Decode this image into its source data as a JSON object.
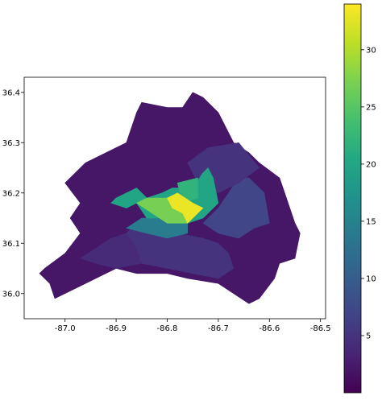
{
  "chart_data": {
    "type": "choropleth",
    "xlim": [
      -87.08,
      -86.49
    ],
    "ylim": [
      35.95,
      36.43
    ],
    "x_ticks": [
      -87.0,
      -86.9,
      -86.8,
      -86.7,
      -86.6,
      -86.5
    ],
    "x_tick_labels": [
      "-87.0",
      "-86.9",
      "-86.8",
      "-86.7",
      "-86.6",
      "-86.5"
    ],
    "y_ticks": [
      36.0,
      36.1,
      36.2,
      36.3,
      36.4
    ],
    "y_tick_labels": [
      "36.0",
      "36.1",
      "36.2",
      "36.3",
      "36.4"
    ],
    "colorbar": {
      "colormap": "viridis",
      "range": [
        0,
        34
      ],
      "ticks": [
        5,
        10,
        15,
        20,
        25,
        30
      ],
      "tick_labels": [
        "5",
        "10",
        "15",
        "20",
        "25",
        "30"
      ]
    },
    "regions": [
      {
        "value": 2,
        "lonlat": [
          [
            -87.04,
            36.05
          ],
          [
            -87.0,
            36.08
          ],
          [
            -86.97,
            36.12
          ],
          [
            -86.99,
            36.15
          ],
          [
            -86.97,
            36.18
          ],
          [
            -87.0,
            36.22
          ],
          [
            -86.96,
            36.26
          ],
          [
            -86.88,
            36.3
          ],
          [
            -86.86,
            36.36
          ],
          [
            -86.85,
            36.38
          ],
          [
            -86.8,
            36.37
          ],
          [
            -86.77,
            36.37
          ],
          [
            -86.75,
            36.4
          ],
          [
            -86.73,
            36.39
          ],
          [
            -86.7,
            36.36
          ],
          [
            -86.67,
            36.3
          ],
          [
            -86.64,
            36.28
          ],
          [
            -86.62,
            36.26
          ],
          [
            -86.58,
            36.23
          ],
          [
            -86.57,
            36.2
          ],
          [
            -86.55,
            36.14
          ],
          [
            -86.54,
            36.12
          ],
          [
            -86.55,
            36.07
          ],
          [
            -86.58,
            36.06
          ],
          [
            -86.59,
            36.03
          ],
          [
            -86.62,
            35.99
          ],
          [
            -86.64,
            35.98
          ],
          [
            -86.67,
            36.0
          ],
          [
            -86.7,
            36.02
          ],
          [
            -86.76,
            36.03
          ],
          [
            -86.8,
            36.04
          ],
          [
            -86.86,
            36.04
          ],
          [
            -86.9,
            36.05
          ],
          [
            -86.96,
            36.02
          ],
          [
            -87.02,
            35.99
          ],
          [
            -87.03,
            36.02
          ],
          [
            -87.05,
            36.04
          ]
        ]
      },
      {
        "value": 4,
        "lonlat": [
          [
            -86.97,
            36.07
          ],
          [
            -86.94,
            36.09
          ],
          [
            -86.91,
            36.11
          ],
          [
            -86.88,
            36.12
          ],
          [
            -86.86,
            36.09
          ],
          [
            -86.85,
            36.06
          ],
          [
            -86.9,
            36.05
          ],
          [
            -86.94,
            36.06
          ]
        ]
      },
      {
        "value": 5,
        "lonlat": [
          [
            -86.88,
            36.12
          ],
          [
            -86.85,
            36.15
          ],
          [
            -86.81,
            36.15
          ],
          [
            -86.78,
            36.12
          ],
          [
            -86.73,
            36.11
          ],
          [
            -86.7,
            36.1
          ],
          [
            -86.68,
            36.08
          ],
          [
            -86.67,
            36.05
          ],
          [
            -86.7,
            36.03
          ],
          [
            -86.75,
            36.04
          ],
          [
            -86.8,
            36.05
          ],
          [
            -86.85,
            36.06
          ],
          [
            -86.86,
            36.09
          ]
        ]
      },
      {
        "value": 7,
        "lonlat": [
          [
            -86.73,
            36.14
          ],
          [
            -86.7,
            36.12
          ],
          [
            -86.66,
            36.11
          ],
          [
            -86.63,
            36.13
          ],
          [
            -86.6,
            36.14
          ],
          [
            -86.61,
            36.2
          ],
          [
            -86.64,
            36.23
          ],
          [
            -86.66,
            36.23
          ],
          [
            -86.68,
            36.2
          ],
          [
            -86.7,
            36.17
          ]
        ]
      },
      {
        "value": 5,
        "lonlat": [
          [
            -86.76,
            36.26
          ],
          [
            -86.72,
            36.29
          ],
          [
            -86.66,
            36.3
          ],
          [
            -86.62,
            36.25
          ],
          [
            -86.66,
            36.22
          ],
          [
            -86.7,
            36.2
          ],
          [
            -86.74,
            36.22
          ]
        ]
      },
      {
        "value": 14,
        "lonlat": [
          [
            -86.88,
            36.13
          ],
          [
            -86.84,
            36.12
          ],
          [
            -86.8,
            36.11
          ],
          [
            -86.76,
            36.12
          ],
          [
            -86.76,
            36.14
          ],
          [
            -86.81,
            36.15
          ],
          [
            -86.85,
            36.15
          ]
        ]
      },
      {
        "value": 20,
        "lonlat": [
          [
            -86.9,
            36.19
          ],
          [
            -86.86,
            36.21
          ],
          [
            -86.84,
            36.19
          ],
          [
            -86.81,
            36.2
          ],
          [
            -86.79,
            36.21
          ],
          [
            -86.75,
            36.21
          ],
          [
            -86.73,
            36.24
          ],
          [
            -86.72,
            36.25
          ],
          [
            -86.71,
            36.23
          ],
          [
            -86.7,
            36.18
          ],
          [
            -86.73,
            36.15
          ],
          [
            -86.76,
            36.14
          ],
          [
            -86.8,
            36.15
          ],
          [
            -86.84,
            36.15
          ],
          [
            -86.86,
            36.18
          ],
          [
            -86.88,
            36.17
          ],
          [
            -86.91,
            36.18
          ]
        ]
      },
      {
        "value": 22,
        "lonlat": [
          [
            -86.78,
            36.22
          ],
          [
            -86.74,
            36.23
          ],
          [
            -86.74,
            36.19
          ],
          [
            -86.77,
            36.18
          ]
        ]
      },
      {
        "value": 27,
        "lonlat": [
          [
            -86.86,
            36.18
          ],
          [
            -86.83,
            36.16
          ],
          [
            -86.8,
            36.14
          ],
          [
            -86.76,
            36.14
          ],
          [
            -86.77,
            36.17
          ],
          [
            -86.8,
            36.19
          ],
          [
            -86.84,
            36.19
          ]
        ]
      },
      {
        "value": 33,
        "lonlat": [
          [
            -86.8,
            36.19
          ],
          [
            -86.78,
            36.2
          ],
          [
            -86.75,
            36.18
          ],
          [
            -86.73,
            36.17
          ],
          [
            -86.76,
            36.14
          ],
          [
            -86.77,
            36.16
          ],
          [
            -86.79,
            36.17
          ]
        ]
      }
    ]
  }
}
